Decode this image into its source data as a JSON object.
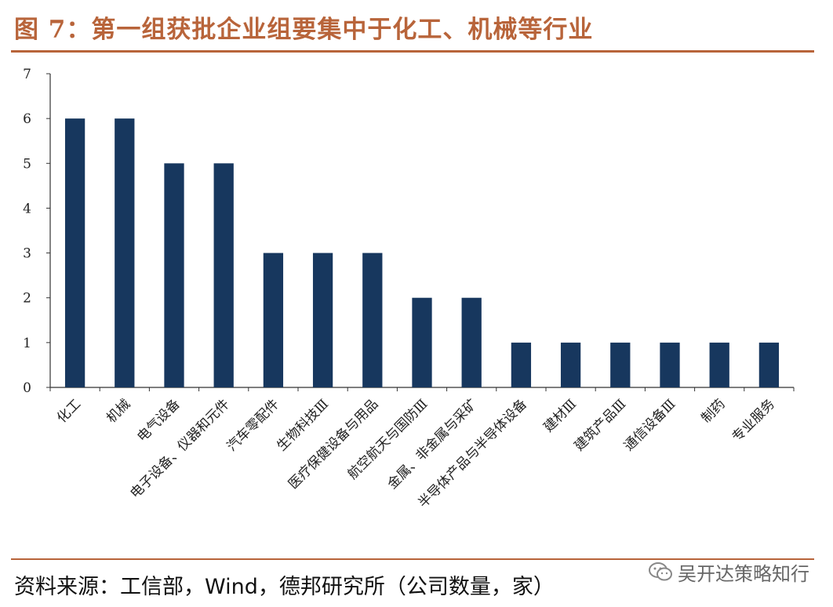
{
  "header": {
    "title": "图 7：第一组获批企业组要集中于化工、机械等行业"
  },
  "footer": {
    "source": "资料来源：工信部，Wind，德邦研究所（公司数量，家）",
    "watermark": "吴开达策略知行"
  },
  "colors": {
    "accent": "#b8643a",
    "bar": "#17375e"
  },
  "chart_data": {
    "type": "bar",
    "categories": [
      "化工",
      "机械",
      "电气设备",
      "电子设备、仪器和元件",
      "汽车零配件",
      "生物科技Ⅲ",
      "医疗保健设备与用品",
      "航空航天与国防Ⅲ",
      "金属、非金属与采矿",
      "半导体产品与半导体设备",
      "建材Ⅲ",
      "建筑产品Ⅲ",
      "通信设备Ⅲ",
      "制药",
      "专业服务"
    ],
    "values": [
      6,
      6,
      5,
      5,
      3,
      3,
      3,
      2,
      2,
      1,
      1,
      1,
      1,
      1,
      1
    ],
    "yticks": [
      "0",
      "1",
      "2",
      "3",
      "4",
      "5",
      "6",
      "7"
    ],
    "ylim": [
      0,
      7
    ],
    "grid": false,
    "legend": "none"
  }
}
